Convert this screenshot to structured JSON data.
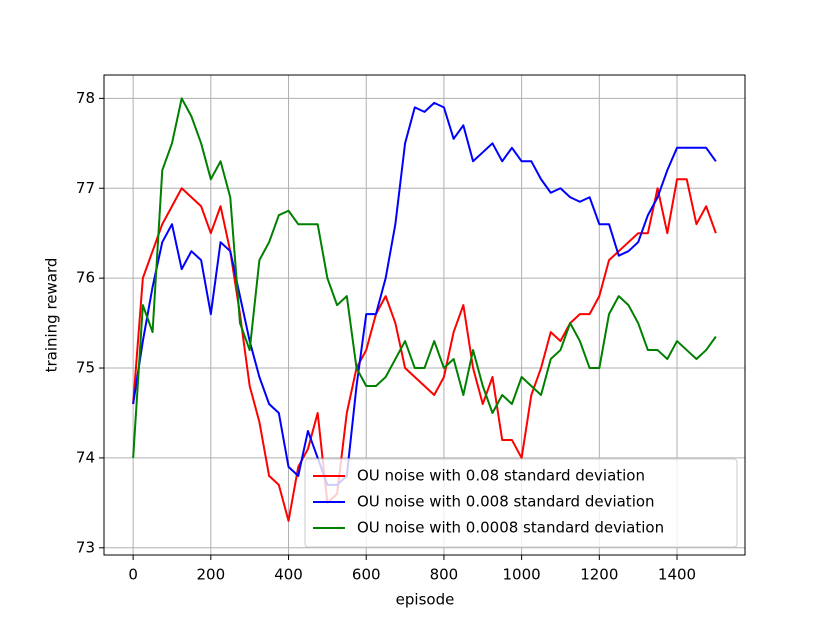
{
  "chart_data": {
    "type": "line",
    "x_label": "episode",
    "y_label": "training reward",
    "x": [
      0,
      25,
      50,
      75,
      100,
      125,
      150,
      175,
      200,
      225,
      250,
      275,
      300,
      325,
      350,
      375,
      400,
      425,
      450,
      475,
      500,
      525,
      550,
      575,
      600,
      625,
      650,
      675,
      700,
      725,
      750,
      775,
      800,
      825,
      850,
      875,
      900,
      925,
      950,
      975,
      1000,
      1025,
      1050,
      1075,
      1100,
      1125,
      1150,
      1175,
      1200,
      1225,
      1250,
      1275,
      1300,
      1325,
      1350,
      1375,
      1400,
      1425,
      1450,
      1475,
      1500
    ],
    "series": [
      {
        "name": "OU noise with 0.08 standard deviation",
        "color": "#ff0000",
        "values": [
          74.6,
          76.0,
          76.3,
          76.6,
          76.8,
          77.0,
          76.9,
          76.8,
          76.5,
          76.8,
          76.3,
          75.6,
          74.8,
          74.4,
          73.8,
          73.7,
          73.3,
          73.9,
          74.1,
          74.5,
          73.5,
          73.6,
          74.5,
          75.0,
          75.2,
          75.6,
          75.8,
          75.5,
          75.0,
          74.9,
          74.8,
          74.7,
          74.9,
          75.4,
          75.7,
          75.0,
          74.6,
          74.9,
          74.2,
          74.2,
          74.0,
          74.7,
          75.0,
          75.4,
          75.3,
          75.5,
          75.6,
          75.6,
          75.8,
          76.2,
          76.3,
          76.4,
          76.5,
          76.5,
          77.0,
          76.5,
          77.1,
          77.1,
          76.6,
          76.8,
          76.5
        ]
      },
      {
        "name": "OU noise with 0.008 standard deviation",
        "color": "#0000ff",
        "values": [
          74.6,
          75.3,
          75.9,
          76.4,
          76.6,
          76.1,
          76.3,
          76.2,
          75.6,
          76.4,
          76.3,
          75.8,
          75.3,
          74.9,
          74.6,
          74.5,
          73.9,
          73.8,
          74.3,
          74.0,
          73.7,
          73.7,
          73.8,
          74.8,
          75.6,
          75.6,
          76.0,
          76.6,
          77.5,
          77.9,
          77.85,
          77.95,
          77.9,
          77.55,
          77.7,
          77.3,
          77.4,
          77.5,
          77.3,
          77.45,
          77.3,
          77.3,
          77.1,
          76.95,
          77.0,
          76.9,
          76.85,
          76.9,
          76.6,
          76.6,
          76.25,
          76.3,
          76.4,
          76.7,
          76.9,
          77.2,
          77.45,
          77.45,
          77.45,
          77.45,
          77.3
        ]
      },
      {
        "name": "OU noise with 0.0008 standard deviation",
        "color": "#008000",
        "values": [
          74.0,
          75.7,
          75.4,
          77.2,
          77.5,
          78.0,
          77.8,
          77.5,
          77.1,
          77.3,
          76.9,
          75.5,
          75.2,
          76.2,
          76.4,
          76.7,
          76.75,
          76.6,
          76.6,
          76.6,
          76.0,
          75.7,
          75.8,
          75.0,
          74.8,
          74.8,
          74.9,
          75.1,
          75.3,
          75.0,
          75.0,
          75.3,
          75.0,
          75.1,
          74.7,
          75.2,
          74.8,
          74.5,
          74.7,
          74.6,
          74.9,
          74.8,
          74.7,
          75.1,
          75.2,
          75.5,
          75.3,
          75.0,
          75.0,
          75.6,
          75.8,
          75.7,
          75.5,
          75.2,
          75.2,
          75.1,
          75.3,
          75.2,
          75.1,
          75.2,
          75.35
        ]
      }
    ],
    "xlim": [
      -75,
      1575
    ],
    "ylim": [
      72.92,
      78.26
    ],
    "xticks": [
      0,
      200,
      400,
      600,
      800,
      1000,
      1200,
      1400
    ],
    "yticks": [
      73,
      74,
      75,
      76,
      77,
      78
    ],
    "grid": true,
    "legend": "lower right"
  }
}
